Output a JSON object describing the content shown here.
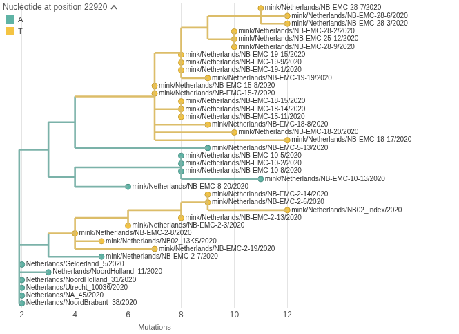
{
  "chart_data": {
    "type": "tree",
    "title": "Nucleotide at position 22920",
    "x_label": "Mutations",
    "xlim": [
      1.8,
      12.2
    ],
    "xticks": [
      2,
      4,
      6,
      8,
      10,
      12
    ],
    "grid": true,
    "tick_labels": "x",
    "legend": "top-left",
    "series": [
      {
        "name": "A",
        "color": "#5fb3a5"
      },
      {
        "name": "T",
        "color": "#f4c443"
      }
    ],
    "tree": {
      "x": 1.9,
      "state": "A",
      "children": [
        {
          "x": 3,
          "state": "A",
          "children": [
            {
              "x": 4,
              "state": "A",
              "children": [
                {
                  "x": 7,
                  "state": "T",
                  "children": [
                    {
                      "x": 8,
                      "state": "T",
                      "children": [
                        {
                          "x": 9,
                          "state": "T",
                          "children": [
                            {
                              "x": 11,
                              "state": "T",
                              "children": [
                                {
                                  "name": "mink/Netherlands/NB-EMC-28-7/2020",
                                  "x": 11,
                                  "state": "T"
                                },
                                {
                                  "name": "mink/Netherlands/NB-EMC-28-6/2020",
                                  "x": 12,
                                  "state": "T"
                                },
                                {
                                  "name": "mink/Netherlands/NB-EMC-28-3/2020",
                                  "x": 12,
                                  "state": "T"
                                }
                              ]
                            },
                            {
                              "x": 10,
                              "state": "T",
                              "children": [
                                {
                                  "name": "mink/Netherlands/NB-EMC-28-2/2020",
                                  "x": 10,
                                  "state": "T"
                                },
                                {
                                  "name": "mink/Netherlands/NB-EMC-25-12/2020",
                                  "x": 10,
                                  "state": "T"
                                },
                                {
                                  "name": "mink/Netherlands/NB-EMC-28-9/2020",
                                  "x": 10,
                                  "state": "T"
                                }
                              ]
                            }
                          ]
                        },
                        {
                          "name": "mink/Netherlands/NB-EMC-19-15/2020",
                          "x": 8,
                          "state": "T"
                        },
                        {
                          "name": "mink/Netherlands/NB-EMC-19-9/2020",
                          "x": 8,
                          "state": "T"
                        },
                        {
                          "name": "mink/Netherlands/NB-EMC-19-1/2020",
                          "x": 8,
                          "state": "T"
                        },
                        {
                          "name": "mink/Netherlands/NB-EMC-19-19/2020",
                          "x": 9,
                          "state": "T"
                        }
                      ]
                    },
                    {
                      "name": "mink/Netherlands/NB-EMC-15-8/2020",
                      "x": 7,
                      "state": "T"
                    },
                    {
                      "name": "mink/Netherlands/NB-EMC-15-7/2020",
                      "x": 7,
                      "state": "T"
                    },
                    {
                      "x": 8,
                      "state": "T",
                      "children": [
                        {
                          "name": "mink/Netherlands/NB-EMC-18-15/2020",
                          "x": 8,
                          "state": "T"
                        },
                        {
                          "name": "mink/Netherlands/NB-EMC-18-14/2020",
                          "x": 8,
                          "state": "T"
                        },
                        {
                          "name": "mink/Netherlands/NB-EMC-15-11/2020",
                          "x": 8,
                          "state": "T"
                        }
                      ]
                    },
                    {
                      "name": "mink/Netherlands/NB-EMC-18-8/2020",
                      "x": 9,
                      "state": "T"
                    },
                    {
                      "name": "mink/Netherlands/NB-EMC-18-20/2020",
                      "x": 10,
                      "state": "T"
                    },
                    {
                      "name": "mink/Netherlands/NB-EMC-18-17/2020",
                      "x": 12,
                      "state": "T"
                    }
                  ]
                },
                {
                  "name": "mink/Netherlands/NB-EMC-5-13/2020",
                  "x": 9,
                  "state": "A"
                }
              ]
            },
            {
              "x": 4,
              "state": "A",
              "children": [
                {
                  "x": 8,
                  "state": "A",
                  "children": [
                    {
                      "name": "mink/Netherlands/NB-EMC-10-5/2020",
                      "x": 8,
                      "state": "A"
                    },
                    {
                      "name": "mink/Netherlands/NB-EMC-10-2/2020",
                      "x": 8,
                      "state": "A"
                    },
                    {
                      "name": "mink/Netherlands/NB-EMC-10-8/2020",
                      "x": 8,
                      "state": "A"
                    },
                    {
                      "name": "mink/Netherlands/NB-EMC-10-13/2020",
                      "x": 11,
                      "state": "A"
                    }
                  ]
                },
                {
                  "name": "mink/Netherlands/NB-EMC-8-20/2020",
                  "x": 6,
                  "state": "A"
                }
              ]
            }
          ]
        },
        {
          "x": 3,
          "state": "A",
          "children": [
            {
              "x": 4,
              "state": "T",
              "children": [
                {
                  "x": 6,
                  "state": "T",
                  "children": [
                    {
                      "x": 8,
                      "state": "T",
                      "children": [
                        {
                          "x": 9,
                          "state": "T",
                          "children": [
                            {
                              "name": "mink/Netherlands/NB-EMC-2-14/2020",
                              "x": 9,
                              "state": "T"
                            },
                            {
                              "name": "mink/Netherlands/NB-EMC-2-6/2020",
                              "x": 9,
                              "state": "T"
                            },
                            {
                              "name": "mink/Netherlands/NB02_index/2020",
                              "x": 12,
                              "state": "T"
                            }
                          ]
                        },
                        {
                          "name": "mink/Netherlands/NB-EMC-2-13/2020",
                          "x": 8,
                          "state": "T"
                        }
                      ]
                    },
                    {
                      "name": "mink/Netherlands/NB-EMC-2-3/2020",
                      "x": 6,
                      "state": "T"
                    }
                  ]
                },
                {
                  "name": "mink/Netherlands/NB-EMC-2-8/2020",
                  "x": 4,
                  "state": "T"
                },
                {
                  "name": "mink/Netherlands/NB02_13KS/2020",
                  "x": 5,
                  "state": "T"
                },
                {
                  "name": "mink/Netherlands/NB-EMC-2-19/2020",
                  "x": 7,
                  "state": "T"
                }
              ]
            },
            {
              "name": "mink/Netherlands/NB-EMC-2-7/2020",
              "x": 5,
              "state": "A"
            }
          ]
        },
        {
          "name": "Netherlands/Gelderland_5/2020",
          "x": 2,
          "state": "A"
        },
        {
          "name": "Netherlands/NoordHolland_11/2020",
          "x": 3,
          "state": "A"
        },
        {
          "name": "Netherlands/NoordHolland_31/2020",
          "x": 2,
          "state": "A"
        },
        {
          "name": "Netherlands/Utrecht_10036/2020",
          "x": 2,
          "state": "A"
        },
        {
          "name": "Netherlands/NA_45/2020",
          "x": 2,
          "state": "A"
        },
        {
          "name": "Netherlands/NoordBrabant_38/2020",
          "x": 2,
          "state": "A"
        }
      ]
    }
  }
}
